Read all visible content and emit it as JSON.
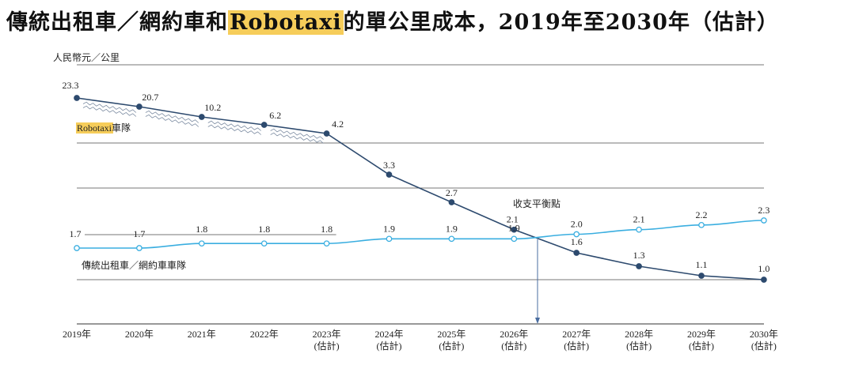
{
  "chart_data": {
    "type": "line",
    "title_parts": [
      "傳統出租車／網約車和",
      "Robotaxi",
      "的單公里成本，2019年至2030年（估計）"
    ],
    "ylabel": "人民幣元／公里",
    "categories": [
      "2019年",
      "2020年",
      "2021年",
      "2022年",
      "2023年",
      "2024年",
      "2025年",
      "2026年",
      "2027年",
      "2028年",
      "2029年",
      "2030年"
    ],
    "category_sub": [
      "",
      "",
      "",
      "",
      "(估計)",
      "(估計)",
      "(估計)",
      "(估計)",
      "(估計)",
      "(估計)",
      "(估計)",
      "(估計)"
    ],
    "series": [
      {
        "name": "Robotaxi車隊",
        "name_parts": [
          "Robotaxi",
          "車隊"
        ],
        "color": "#2d4a6e",
        "values": [
          23.3,
          20.7,
          10.2,
          6.2,
          4.2,
          3.3,
          2.7,
          2.1,
          1.6,
          1.3,
          1.1,
          1.0
        ]
      },
      {
        "name": "傳統出租車／網約車車隊",
        "color": "#3aaee0",
        "values": [
          1.7,
          1.7,
          1.8,
          1.8,
          1.8,
          1.9,
          1.9,
          1.9,
          2.0,
          2.1,
          2.2,
          2.3
        ]
      }
    ],
    "annotation": "收支平衡點",
    "axis_break": true,
    "grid": true,
    "highlight_color": "#f6cd5a"
  }
}
